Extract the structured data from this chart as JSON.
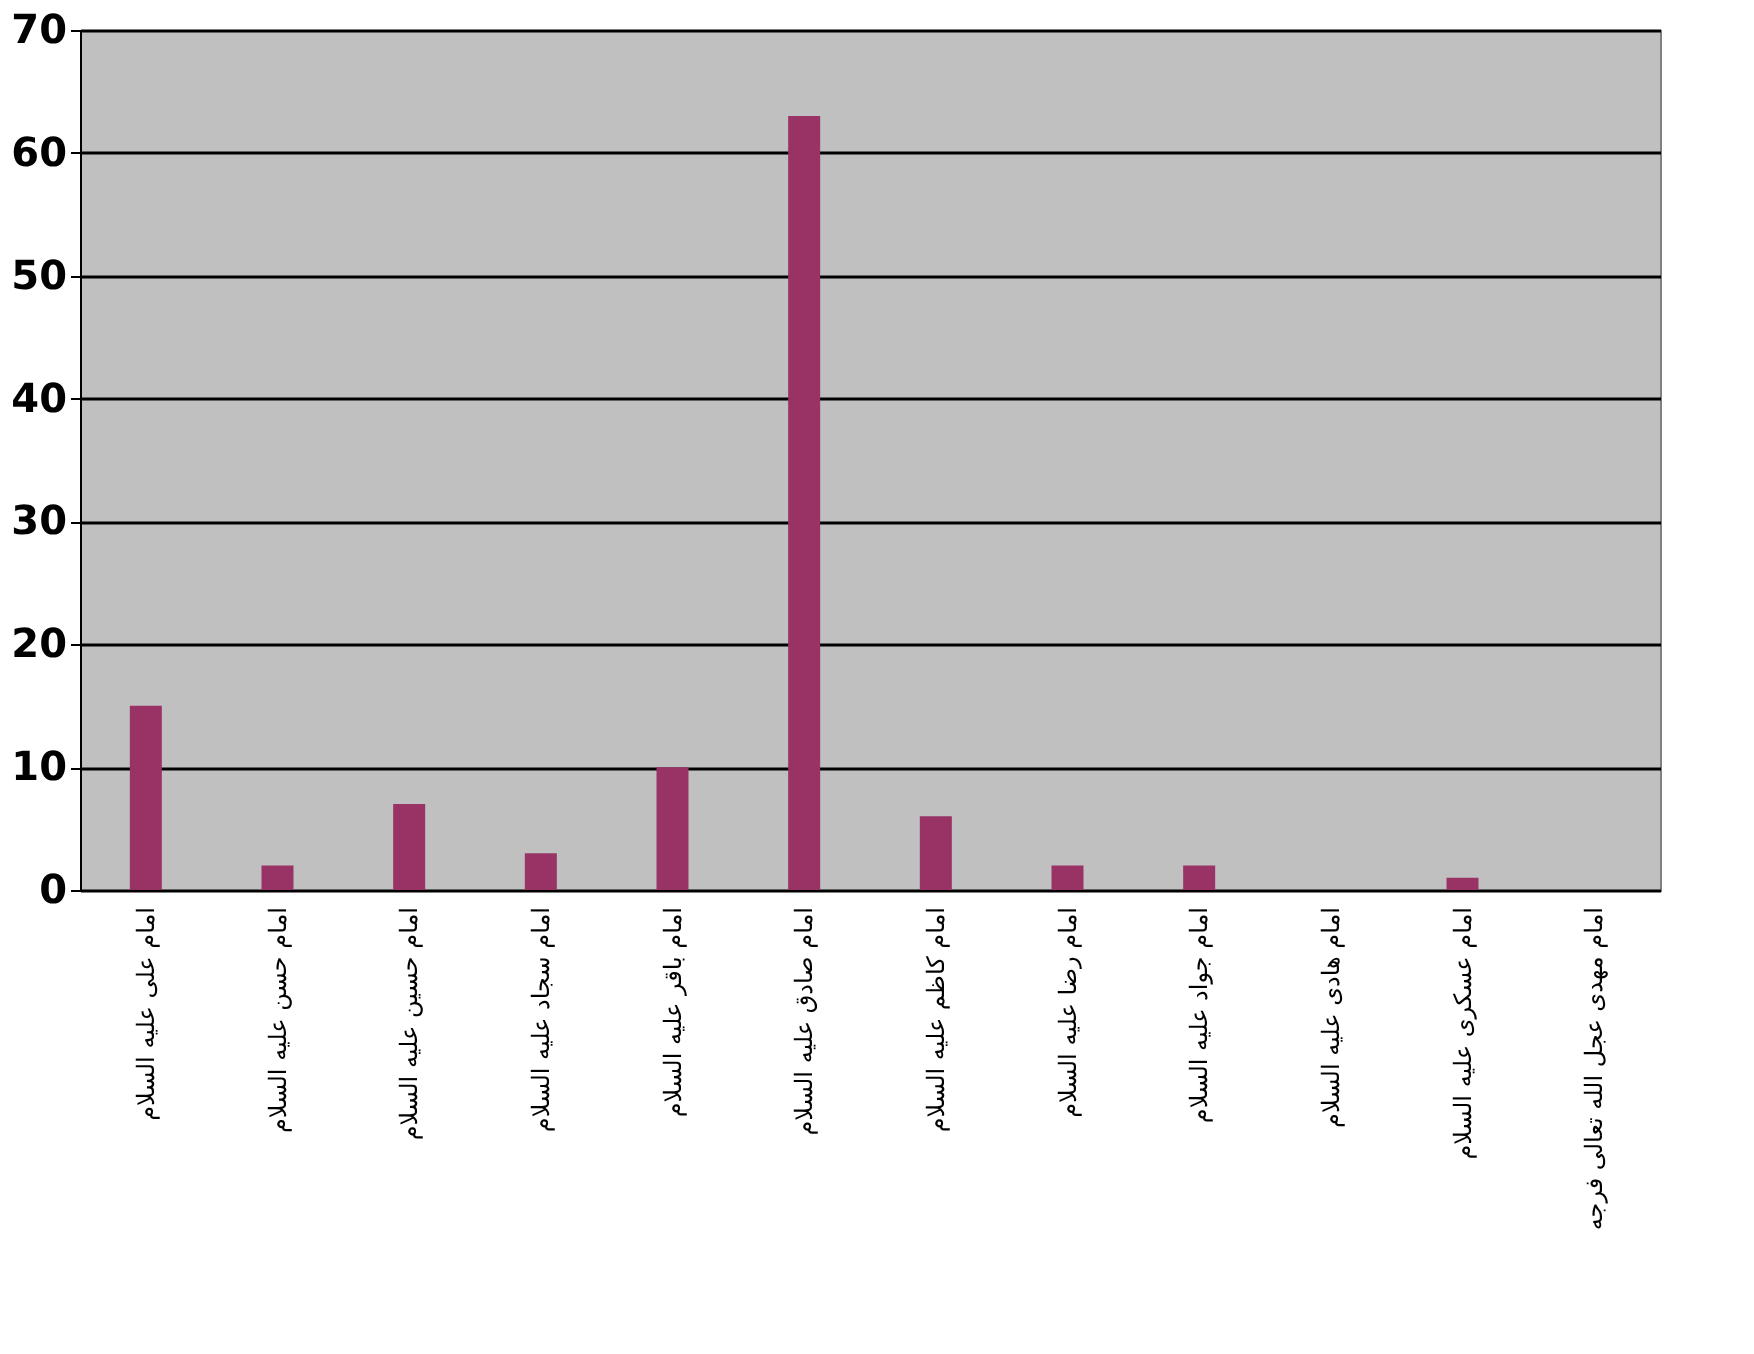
{
  "chart_data": {
    "type": "bar",
    "categories": [
      "امام علی علیه السلام",
      "امام حسن علیه السلام",
      "امام حسین علیه السلام",
      "امام سجاد علیه السلام",
      "امام باقر علیه السلام",
      "امام صادق علیه السلام",
      "امام کاظم علیه السلام",
      "امام رضا علیه السلام",
      "امام جواد علیه السلام",
      "امام هادی علیه السلام",
      "امام عسکری علیه السلام",
      "امام مهدی عجل الله تعالی فرجه"
    ],
    "values": [
      15,
      2,
      7,
      3,
      10,
      63,
      6,
      2,
      2,
      0,
      1,
      0
    ],
    "color": "#993366",
    "ylim": [
      0,
      70
    ],
    "yticks": [
      0,
      10,
      20,
      30,
      40,
      50,
      60,
      70
    ],
    "grid": "y"
  }
}
